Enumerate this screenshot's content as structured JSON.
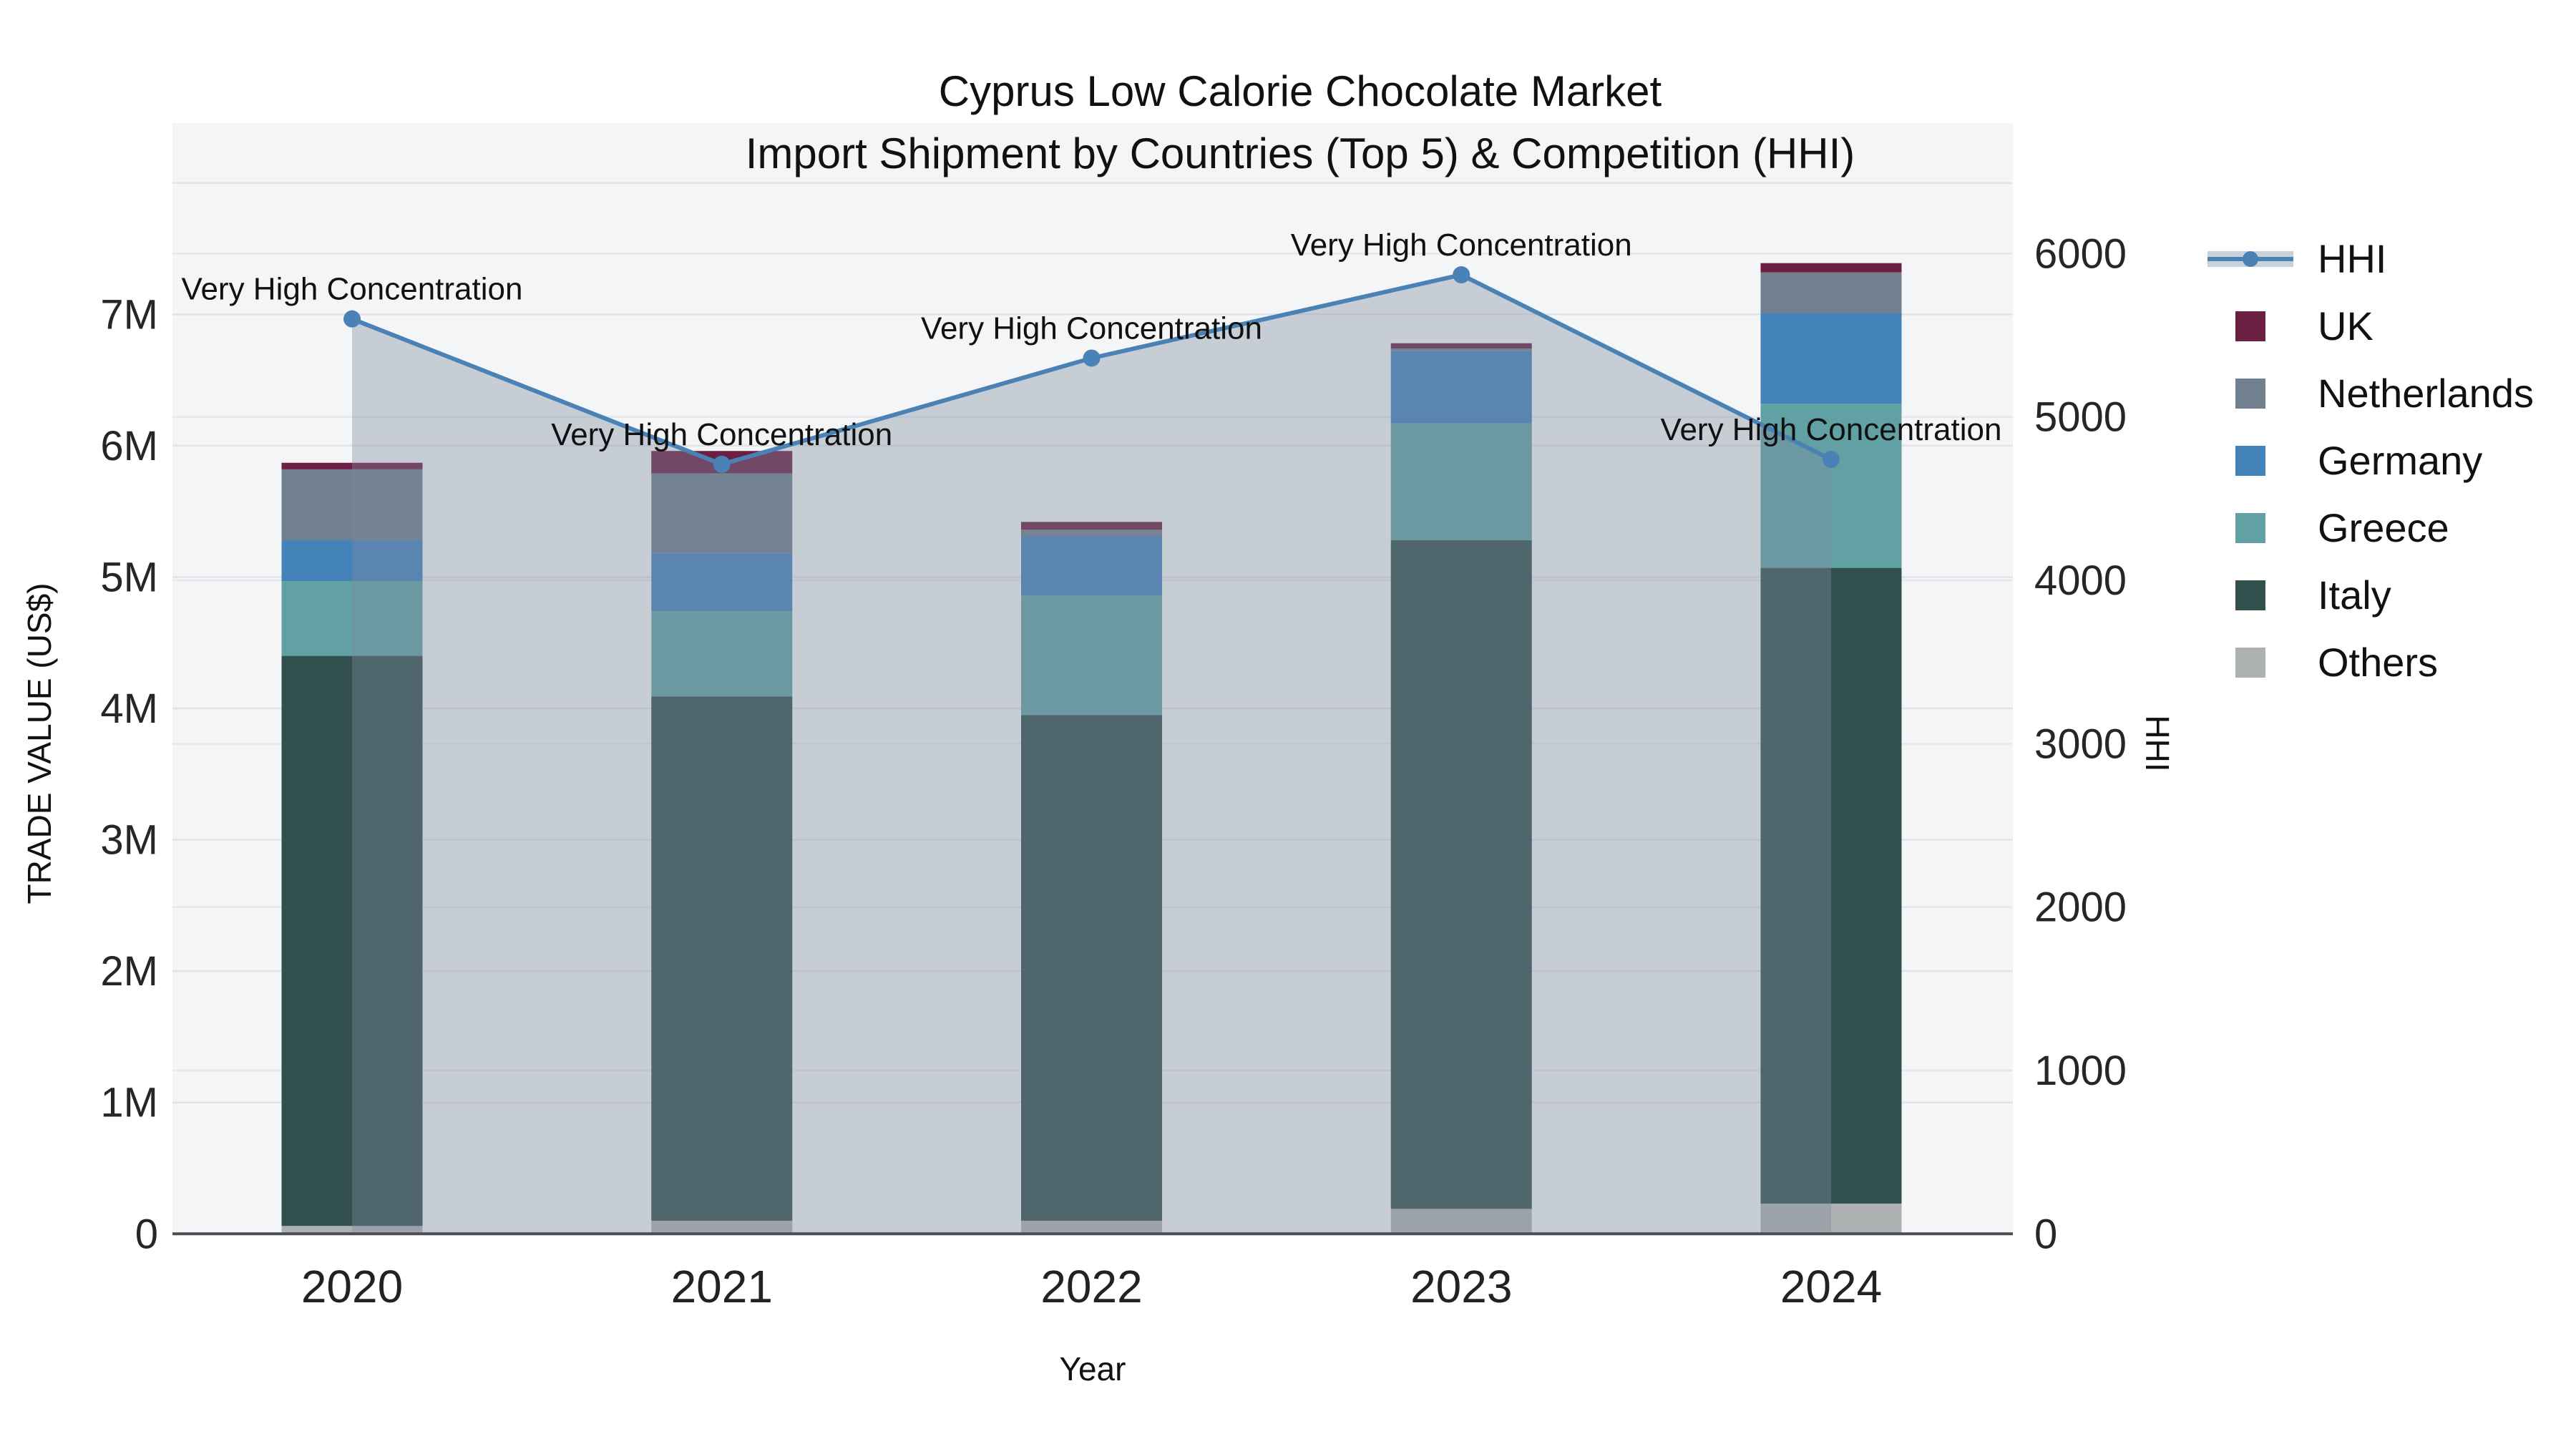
{
  "title": {
    "line1": "Cyprus Low Calorie Chocolate Market",
    "line2": "Import Shipment by Countries (Top 5) & Competition (HHI)"
  },
  "chart_data": {
    "type": "bar",
    "subtype": "stacked-bars-with-line-overlay",
    "title": "Cyprus Low Calorie Chocolate Market Import Shipment by Countries (Top 5) & Competition (HHI)",
    "categories": [
      "2020",
      "2021",
      "2022",
      "2023",
      "2024"
    ],
    "bar_unit": "million US$",
    "series": [
      {
        "name": "Others",
        "color": "#adb1b1",
        "values": [
          0.06,
          0.1,
          0.1,
          0.19,
          0.23
        ]
      },
      {
        "name": "Italy",
        "color": "#32504d",
        "values": [
          4.34,
          3.99,
          3.85,
          5.09,
          4.84
        ]
      },
      {
        "name": "Greece",
        "color": "#61a0a3",
        "values": [
          0.57,
          0.65,
          0.91,
          0.89,
          1.25
        ]
      },
      {
        "name": "Germany",
        "color": "#4482ba",
        "values": [
          0.31,
          0.44,
          0.45,
          0.55,
          0.69
        ]
      },
      {
        "name": "Netherlands",
        "color": "#70808f",
        "values": [
          0.54,
          0.61,
          0.05,
          0.02,
          0.31
        ]
      },
      {
        "name": "UK",
        "color": "#6b2043",
        "values": [
          0.05,
          0.17,
          0.06,
          0.04,
          0.07
        ]
      }
    ],
    "line_series": {
      "name": "HHI",
      "color": "#4a82b6",
      "area_fill": "rgba(125,140,160,0.38)",
      "values": [
        5600,
        4710,
        5360,
        5870,
        4740
      ]
    },
    "point_annotations": [
      "Very High Concentration",
      "Very High Concentration",
      "Very High Concentration",
      "Very High Concentration",
      "Very High Concentration"
    ],
    "x_axis": {
      "label": "Year"
    },
    "y_left": {
      "label": "TRADE VALUE (US$)",
      "tick_labels": [
        "0",
        "1M",
        "2M",
        "3M",
        "4M",
        "5M",
        "6M",
        "7M"
      ],
      "tick_values_musd": [
        0,
        1,
        2,
        3,
        4,
        5,
        6,
        7
      ],
      "range_musd": [
        0,
        8.45
      ],
      "grid": true
    },
    "y_right": {
      "label": "HHI",
      "tick_labels": [
        "0",
        "1000",
        "2000",
        "3000",
        "4000",
        "5000",
        "6000"
      ],
      "tick_values": [
        0,
        1000,
        2000,
        3000,
        4000,
        5000,
        6000
      ],
      "range": [
        0,
        6800
      ],
      "grid": true
    },
    "legend_position": "right",
    "legend": [
      {
        "label": "HHI",
        "type": "line"
      },
      {
        "label": "UK",
        "type": "swatch",
        "color": "#6b2043"
      },
      {
        "label": "Netherlands",
        "type": "swatch",
        "color": "#70808f"
      },
      {
        "label": "Germany",
        "type": "swatch",
        "color": "#4482ba"
      },
      {
        "label": "Greece",
        "type": "swatch",
        "color": "#61a0a3"
      },
      {
        "label": "Italy",
        "type": "swatch",
        "color": "#32504d"
      },
      {
        "label": "Others",
        "type": "swatch",
        "color": "#adb1b1"
      }
    ],
    "style": {
      "plot_bg": "#f4f5f6",
      "grid_color_left": "#e2e3e7",
      "grid_color_right": "#e6e7ea",
      "axis_line_color": "#4a4e52",
      "tick_color": "#262626"
    }
  }
}
